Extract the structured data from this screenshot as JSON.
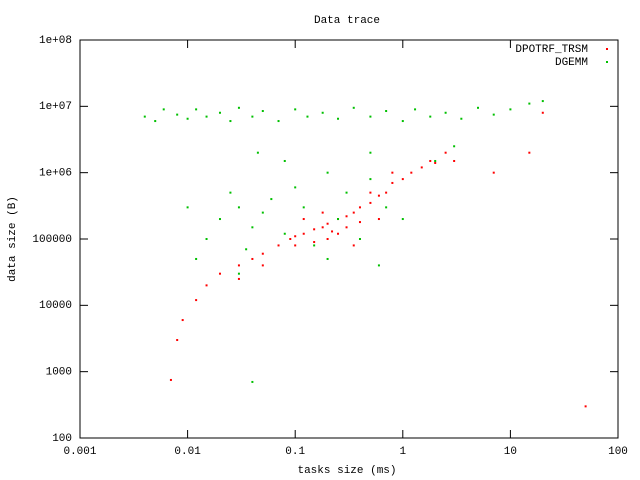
{
  "chart_data": {
    "type": "scatter",
    "title": "Data trace",
    "x_label": "tasks size (ms)",
    "y_label": "data size (B)",
    "x_log": true,
    "y_log": true,
    "legend": "top-right",
    "xlim": [
      0.001,
      100
    ],
    "ylim": [
      100,
      100000000
    ],
    "xticks": [
      0.001,
      0.01,
      0.1,
      1,
      10,
      100
    ],
    "yticks": [
      100,
      1000,
      10000,
      100000,
      {
        "value": 1000000,
        "label": "1e+06"
      },
      {
        "value": 10000000,
        "label": "1e+07"
      },
      {
        "value": 100000000,
        "label": "1e+08"
      }
    ],
    "series": [
      {
        "name": "DPOTRF_TRSM",
        "color": "#ff0000",
        "x": [
          0.007,
          0.008,
          0.009,
          0.012,
          0.015,
          0.02,
          0.03,
          0.04,
          0.05,
          0.07,
          0.09,
          0.1,
          0.12,
          0.15,
          0.18,
          0.2,
          0.22,
          0.25,
          0.3,
          0.35,
          0.4,
          0.5,
          0.6,
          0.7,
          0.8,
          1,
          1.2,
          1.5,
          1.8,
          2,
          2.5,
          0.15,
          0.25,
          0.3,
          0.12,
          0.18,
          0.4,
          0.05,
          0.03,
          0.1,
          0.5,
          0.8,
          20,
          15,
          7,
          50,
          0.2,
          0.35,
          0.6,
          3
        ],
        "values": [
          750,
          3000,
          6000,
          12000,
          20000,
          30000,
          40000,
          50000,
          60000,
          80000,
          100000,
          110000,
          120000,
          140000,
          150000,
          170000,
          130000,
          200000,
          220000,
          250000,
          300000,
          350000,
          450000,
          500000,
          700000,
          800000,
          1000000,
          1200000,
          1500000,
          1400000,
          2000000,
          90000,
          120000,
          150000,
          200000,
          250000,
          180000,
          40000,
          25000,
          80000,
          500000,
          1000000,
          8000000,
          2000000,
          1000000,
          300,
          100000,
          80000,
          200000,
          1500000
        ]
      },
      {
        "name": "DGEMM",
        "color": "#00c000",
        "x": [
          0.004,
          0.005,
          0.006,
          0.008,
          0.01,
          0.012,
          0.015,
          0.02,
          0.025,
          0.03,
          0.04,
          0.05,
          0.07,
          0.1,
          0.13,
          0.18,
          0.25,
          0.35,
          0.5,
          0.7,
          1,
          1.3,
          1.8,
          2.5,
          3.5,
          5,
          7,
          10,
          15,
          20,
          0.02,
          0.03,
          0.015,
          0.025,
          0.04,
          0.05,
          0.06,
          0.08,
          0.1,
          0.12,
          0.15,
          0.2,
          0.25,
          0.3,
          0.4,
          0.5,
          0.7,
          0.012,
          0.035,
          0.045,
          0.5,
          2,
          3,
          0.03,
          0.08,
          0.6,
          0.01,
          0.2,
          1,
          0.04
        ],
        "values": [
          7000000,
          6000000,
          9000000,
          7500000,
          6500000,
          9000000,
          7000000,
          8000000,
          6000000,
          9500000,
          7000000,
          8500000,
          6000000,
          9000000,
          7000000,
          8000000,
          6500000,
          9500000,
          7000000,
          8500000,
          6000000,
          9000000,
          7000000,
          8000000,
          6500000,
          9500000,
          7500000,
          9000000,
          11000000,
          12000000,
          200000,
          300000,
          100000,
          500000,
          150000,
          250000,
          400000,
          120000,
          600000,
          300000,
          80000,
          1000000,
          200000,
          500000,
          100000,
          800000,
          300000,
          50000,
          70000,
          2000000,
          2000000,
          1500000,
          2500000,
          30000,
          1500000,
          40000,
          300000,
          50000,
          200000,
          700
        ]
      }
    ]
  }
}
